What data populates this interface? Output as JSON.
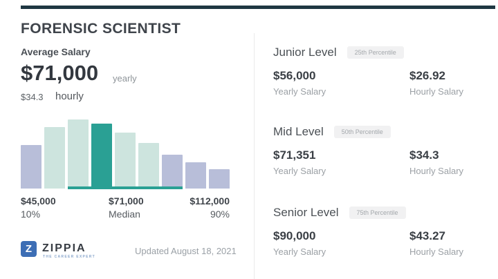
{
  "colors": {
    "top_bar": "#1e3742",
    "accent_teal": "#2aa094",
    "bar_lavender": "#b8bed9",
    "bar_mint": "#cde4de",
    "zippia_blue": "#3d6eb5"
  },
  "header": {
    "title": "FORENSIC SCIENTIST"
  },
  "summary": {
    "label": "Average Salary",
    "yearly_value": "$71,000",
    "yearly_unit": "yearly",
    "hourly_value": "$34.3",
    "hourly_unit": "hourly"
  },
  "chart_data": {
    "type": "bar",
    "title": "",
    "xlabel": "",
    "ylabel": "",
    "grid": false,
    "ylim": [
      0,
      100
    ],
    "values": [
      63,
      89,
      100,
      94,
      81,
      66,
      49,
      38,
      28
    ],
    "bar_colors": [
      "#b8bed9",
      "#cde4de",
      "#cde4de",
      "#2aa094",
      "#cde4de",
      "#cde4de",
      "#b8bed9",
      "#b8bed9",
      "#b8bed9"
    ],
    "highlight_index": 3,
    "highlight_color": "#2aa094",
    "highlight_range_indices": [
      2,
      6
    ],
    "x_markers": [
      {
        "label": "$45,000",
        "sublabel": "10%"
      },
      {
        "label": "$71,000",
        "sublabel": "Median"
      },
      {
        "label": "$112,000",
        "sublabel": "90%"
      }
    ]
  },
  "levels": [
    {
      "name": "Junior Level",
      "percentile": "25th Percentile",
      "yearly": "$56,000",
      "yearly_label": "Yearly Salary",
      "hourly": "$26.92",
      "hourly_label": "Hourly Salary"
    },
    {
      "name": "Mid Level",
      "percentile": "50th Percentile",
      "yearly": "$71,351",
      "yearly_label": "Yearly Salary",
      "hourly": "$34.3",
      "hourly_label": "Hourly Salary"
    },
    {
      "name": "Senior Level",
      "percentile": "75th Percentile",
      "yearly": "$90,000",
      "yearly_label": "Yearly Salary",
      "hourly": "$43.27",
      "hourly_label": "Hourly Salary"
    }
  ],
  "footer": {
    "logo_letter": "Z",
    "logo_text": "ZIPPIA",
    "logo_tagline": "THE CAREER EXPERT",
    "updated": "Updated August 18, 2021"
  }
}
